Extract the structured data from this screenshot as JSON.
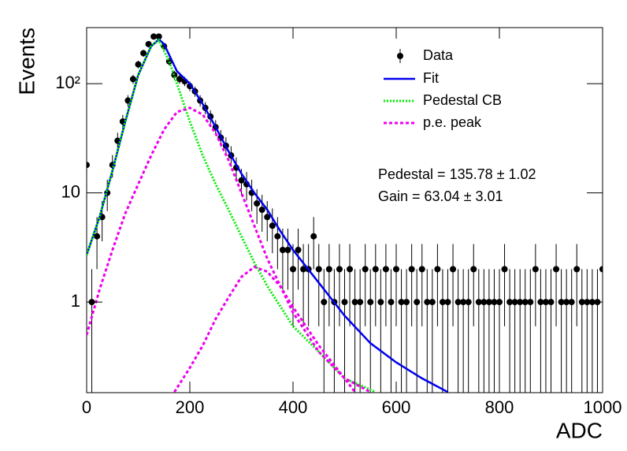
{
  "chart_data": {
    "type": "line",
    "xlabel": "ADC",
    "ylabel": "Events",
    "xlim": [
      0,
      1000
    ],
    "ylim": [
      0.148,
      326
    ],
    "log_y": true,
    "xticks": [
      0,
      200,
      400,
      600,
      800,
      1000
    ],
    "yticks": [
      1,
      10,
      {
        "value": 100,
        "label": "10²"
      }
    ],
    "legend": "upper right",
    "annotations": [
      "Pedestal = 135.78 ± 1.02",
      "Gain = 63.04 ± 3.01"
    ],
    "series": [
      {
        "name": "Data",
        "style": "points",
        "color": "#000000",
        "x": [
          0,
          10,
          20,
          30,
          40,
          50,
          60,
          70,
          80,
          90,
          100,
          110,
          120,
          130,
          140,
          150,
          160,
          170,
          180,
          190,
          200,
          210,
          220,
          230,
          240,
          250,
          260,
          270,
          280,
          290,
          300,
          310,
          320,
          330,
          340,
          350,
          360,
          370,
          380,
          390,
          400,
          410,
          420,
          430,
          440,
          450,
          460,
          470,
          480,
          490,
          500,
          510,
          520,
          530,
          540,
          550,
          560,
          570,
          580,
          590,
          600,
          610,
          620,
          630,
          640,
          650,
          660,
          670,
          680,
          690,
          700,
          710,
          720,
          730,
          740,
          750,
          760,
          770,
          780,
          790,
          800,
          810,
          820,
          830,
          840,
          850,
          860,
          870,
          880,
          890,
          900,
          910,
          920,
          930,
          940,
          950,
          960,
          970,
          980,
          990,
          1000
        ],
        "values": [
          18,
          1,
          4,
          6,
          10,
          18,
          30,
          45,
          70,
          110,
          150,
          190,
          230,
          270,
          270,
          220,
          160,
          120,
          110,
          105,
          95,
          85,
          70,
          60,
          50,
          40,
          32,
          27,
          22,
          17,
          13,
          12,
          10,
          8,
          7,
          6,
          5,
          4,
          3,
          3,
          2,
          3,
          2,
          2,
          4,
          2,
          1,
          2,
          1,
          2,
          1,
          2,
          1,
          1,
          2,
          1,
          2,
          1,
          2,
          1,
          2,
          1,
          1,
          2,
          1,
          2,
          1,
          1,
          2,
          1,
          1,
          2,
          1,
          1,
          1,
          2,
          1,
          1,
          1,
          1,
          1,
          2,
          1,
          1,
          1,
          1,
          1,
          2,
          1,
          1,
          1,
          2,
          1,
          1,
          1,
          2,
          1,
          1,
          1,
          1,
          2
        ],
        "errors": [
          4.2,
          1,
          2,
          2.4,
          3.2,
          4.2,
          5.5,
          6.7,
          8.4,
          10.5,
          12.2,
          13.8,
          15.2,
          16.4,
          16.4,
          14.8,
          12.6,
          11,
          10.5,
          10.2,
          9.7,
          9.2,
          8.4,
          7.7,
          7.1,
          6.3,
          5.7,
          5.2,
          4.7,
          4.1,
          3.6,
          3.5,
          3.2,
          2.8,
          2.6,
          2.4,
          2.2,
          2,
          1.7,
          1.7,
          1.4,
          1.7,
          1.4,
          1.4,
          2,
          1.4,
          1,
          1.4,
          1,
          1.4,
          1,
          1.4,
          1,
          1,
          1.4,
          1,
          1.4,
          1,
          1.4,
          1,
          1.4,
          1,
          1,
          1.4,
          1,
          1.4,
          1,
          1,
          1.4,
          1,
          1,
          1.4,
          1,
          1,
          1,
          1.4,
          1,
          1,
          1,
          1,
          1,
          1.4,
          1,
          1,
          1,
          1,
          1,
          1.4,
          1,
          1,
          1,
          1.4,
          1,
          1,
          1,
          1.4,
          1,
          1,
          1,
          1,
          1.4
        ]
      },
      {
        "name": "Fit",
        "style": "solid",
        "color": "#0000ee",
        "x": [
          0,
          25,
          50,
          75,
          100,
          125,
          140,
          150,
          175,
          200,
          225,
          250,
          275,
          300,
          325,
          350,
          375,
          400,
          450,
          500,
          550,
          600,
          650,
          700
        ],
        "values": [
          2.7,
          6,
          16,
          45,
          120,
          220,
          255,
          230,
          130,
          100,
          65,
          40,
          24,
          15,
          10,
          7,
          4.5,
          3,
          1.5,
          0.75,
          0.42,
          0.28,
          0.2,
          0.15
        ]
      },
      {
        "name": "Pedestal CB",
        "style": "dotted",
        "color": "#00ee00",
        "x": [
          0,
          25,
          50,
          75,
          100,
          125,
          140,
          160,
          175,
          200,
          225,
          250,
          275,
          300,
          325,
          350,
          400,
          450,
          500,
          560
        ],
        "values": [
          2.7,
          6,
          16,
          45,
          120,
          220,
          250,
          160,
          100,
          45,
          22,
          12,
          7,
          4,
          2.3,
          1.4,
          0.6,
          0.35,
          0.2,
          0.15
        ]
      },
      {
        "name": "p.e. peak",
        "style": "dashed",
        "color": "#ee00ee",
        "x": [
          0,
          25,
          50,
          75,
          100,
          125,
          150,
          175,
          200,
          225,
          250,
          275,
          300,
          325,
          350,
          400,
          450,
          500,
          520,
          null,
          170,
          200,
          225,
          250,
          275,
          300,
          325,
          350,
          375,
          400,
          450,
          500,
          550
        ],
        "values": [
          0.5,
          1.3,
          3,
          6.5,
          12,
          22,
          38,
          55,
          60,
          52,
          35,
          20,
          10,
          5,
          2.5,
          0.8,
          0.35,
          0.2,
          0.15,
          null,
          0.15,
          0.25,
          0.4,
          0.7,
          1.1,
          1.7,
          2.1,
          1.9,
          1.4,
          0.9,
          0.4,
          0.2,
          0.15
        ]
      }
    ]
  }
}
